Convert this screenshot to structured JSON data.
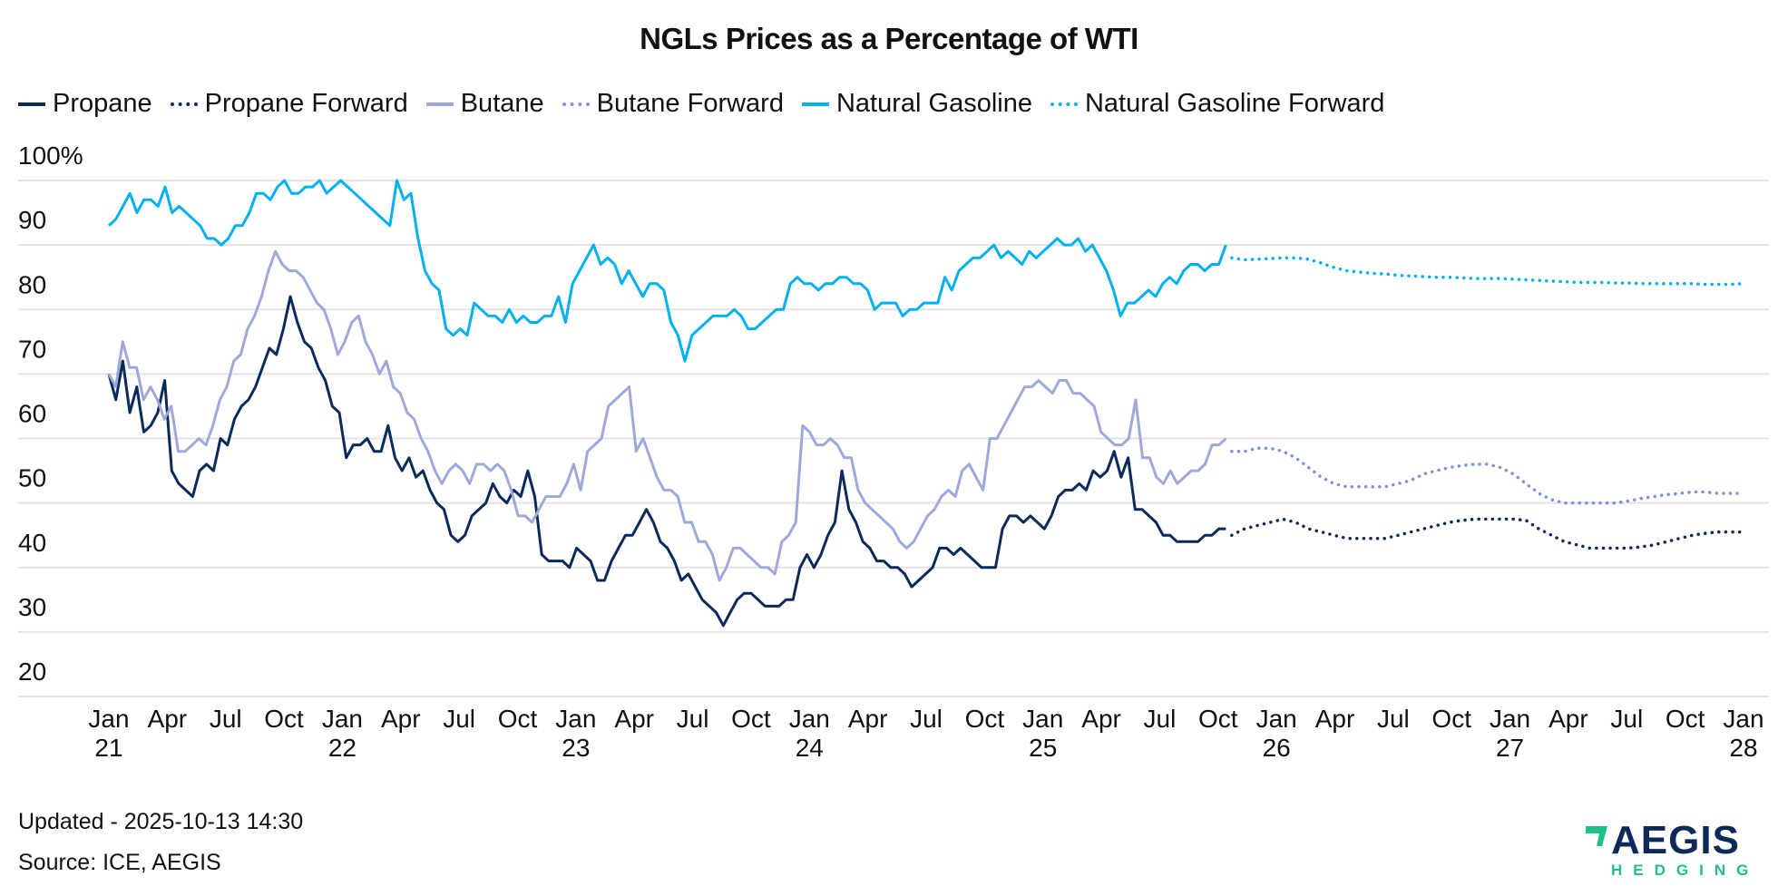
{
  "chart_data": {
    "type": "line",
    "title": "NGLs Prices as a Percentage of WTI",
    "xlabel": "",
    "ylabel": "",
    "ylim": [
      20,
      100
    ],
    "y_ticks": [
      "100%",
      "90",
      "80",
      "70",
      "60",
      "50",
      "40",
      "30",
      "20"
    ],
    "y_tick_values": [
      100,
      90,
      80,
      70,
      60,
      50,
      40,
      30,
      20
    ],
    "x_ticks": [
      {
        "month": "Jan",
        "year": "21"
      },
      {
        "month": "Apr",
        "year": ""
      },
      {
        "month": "Jul",
        "year": ""
      },
      {
        "month": "Oct",
        "year": ""
      },
      {
        "month": "Jan",
        "year": "22"
      },
      {
        "month": "Apr",
        "year": ""
      },
      {
        "month": "Jul",
        "year": ""
      },
      {
        "month": "Oct",
        "year": ""
      },
      {
        "month": "Jan",
        "year": "23"
      },
      {
        "month": "Apr",
        "year": ""
      },
      {
        "month": "Jul",
        "year": ""
      },
      {
        "month": "Oct",
        "year": ""
      },
      {
        "month": "Jan",
        "year": "24"
      },
      {
        "month": "Apr",
        "year": ""
      },
      {
        "month": "Jul",
        "year": ""
      },
      {
        "month": "Oct",
        "year": ""
      },
      {
        "month": "Jan",
        "year": "25"
      },
      {
        "month": "Apr",
        "year": ""
      },
      {
        "month": "Jul",
        "year": ""
      },
      {
        "month": "Oct",
        "year": ""
      },
      {
        "month": "Jan",
        "year": "26"
      },
      {
        "month": "Apr",
        "year": ""
      },
      {
        "month": "Jul",
        "year": ""
      },
      {
        "month": "Oct",
        "year": ""
      },
      {
        "month": "Jan",
        "year": "27"
      },
      {
        "month": "Apr",
        "year": ""
      },
      {
        "month": "Jul",
        "year": ""
      },
      {
        "month": "Oct",
        "year": ""
      },
      {
        "month": "Jan",
        "year": "28"
      }
    ],
    "x_range": [
      "2021-01",
      "2028-01"
    ],
    "grid": "horizontal",
    "legend_position": "top-left",
    "x_historical_start": "2021-01",
    "x_step": "half-month",
    "series": [
      {
        "name": "Propane",
        "style": "solid",
        "color": "#0b2a5a",
        "start": "2021-01",
        "values": [
          70,
          66,
          72,
          64,
          68,
          61,
          62,
          64,
          69,
          55,
          53,
          52,
          51,
          55,
          56,
          55,
          60,
          59,
          63,
          65,
          66,
          68,
          71,
          74,
          73,
          77,
          82,
          78,
          75,
          74,
          71,
          69,
          65,
          64,
          57,
          59,
          59,
          60,
          58,
          58,
          62,
          57,
          55,
          57,
          54,
          55,
          52,
          50,
          49,
          45,
          44,
          45,
          48,
          49,
          50,
          53,
          51,
          50,
          52,
          51,
          55,
          51,
          42,
          41,
          41,
          41,
          40,
          43,
          42,
          41,
          38,
          38,
          41,
          43,
          45,
          45,
          47,
          49,
          47,
          44,
          43,
          41,
          38,
          39,
          37,
          35,
          34,
          33,
          31,
          33,
          35,
          36,
          36,
          35,
          34,
          34,
          34,
          35,
          35,
          40,
          42,
          40,
          42,
          45,
          47,
          55,
          49,
          47,
          44,
          43,
          41,
          41,
          40,
          40,
          39,
          37,
          38,
          39,
          40,
          43,
          43,
          42,
          43,
          42,
          41,
          40,
          40,
          40,
          46,
          48,
          48,
          47,
          48,
          47,
          46,
          48,
          51,
          52,
          52,
          53,
          52,
          55,
          54,
          55,
          58,
          54,
          57,
          49,
          49,
          48,
          47,
          45,
          45,
          44,
          44,
          44,
          44,
          45,
          45,
          46,
          46
        ]
      },
      {
        "name": "Propane Forward",
        "style": "dotted",
        "color": "#0b2a5a",
        "start": "2025-10",
        "values": [
          45,
          46,
          46.5,
          47,
          47.5,
          47,
          46,
          45.5,
          45,
          44.5,
          44.5,
          44.5,
          44.5,
          45,
          45.5,
          46,
          46.5,
          47,
          47.3,
          47.5,
          47.5,
          47.5,
          47.5,
          47.3,
          46,
          45,
          44,
          43.5,
          43,
          43,
          43,
          43,
          43.2,
          43.5,
          44,
          44.5,
          45,
          45.3,
          45.5,
          45.5,
          45.5
        ]
      },
      {
        "name": "Butane",
        "style": "solid",
        "color": "#9fa8da",
        "start": "2021-01",
        "values": [
          70,
          68,
          75,
          71,
          71,
          66,
          68,
          66,
          63,
          65,
          58,
          58,
          59,
          60,
          59,
          62,
          66,
          68,
          72,
          73,
          77,
          79,
          82,
          86,
          89,
          87,
          86,
          86,
          85,
          83,
          81,
          80,
          77,
          73,
          75,
          78,
          79,
          75,
          73,
          70,
          72,
          68,
          67,
          64,
          63,
          60,
          58,
          55,
          53,
          55,
          56,
          55,
          53,
          56,
          56,
          55,
          56,
          55,
          52,
          48,
          48,
          47,
          49,
          51,
          51,
          51,
          53,
          56,
          52,
          58,
          59,
          60,
          65,
          66,
          67,
          68,
          58,
          60,
          57,
          54,
          52,
          52,
          51,
          47,
          47,
          44,
          44,
          42,
          38,
          40,
          43,
          43,
          42,
          41,
          40,
          40,
          39,
          44,
          45,
          47,
          62,
          61,
          59,
          59,
          60,
          59,
          57,
          57,
          52,
          50,
          49,
          48,
          47,
          46,
          44,
          43,
          44,
          46,
          48,
          49,
          51,
          52,
          51,
          55,
          56,
          54,
          52,
          60,
          60,
          62,
          64,
          66,
          68,
          68,
          69,
          68,
          67,
          69,
          69,
          67,
          67,
          66,
          65,
          61,
          60,
          59,
          59,
          60,
          66,
          57,
          57,
          54,
          53,
          55,
          53,
          54,
          55,
          55,
          56,
          59,
          59,
          60
        ]
      },
      {
        "name": "Butane Forward",
        "style": "dotted",
        "color": "#7e93d6",
        "start": "2025-10",
        "values": [
          58,
          58,
          58.5,
          58.5,
          58,
          57,
          55.5,
          54,
          53,
          52.5,
          52.5,
          52.5,
          52.5,
          53,
          53.5,
          54.5,
          55,
          55.5,
          55.8,
          56,
          56,
          55.5,
          54.5,
          53,
          51.5,
          50.5,
          50,
          50,
          50,
          50,
          50,
          50.3,
          50.7,
          51,
          51.3,
          51.5,
          51.7,
          51.7,
          51.5,
          51.5,
          51.5
        ]
      },
      {
        "name": "Natural Gasoline",
        "style": "solid",
        "color": "#00b0f0",
        "start": "2021-01",
        "values": [
          93,
          94,
          96,
          98,
          95,
          97,
          97,
          96,
          99,
          95,
          96,
          95,
          94,
          93,
          91,
          91,
          90,
          91,
          93,
          93,
          95,
          98,
          98,
          97,
          99,
          100,
          98,
          98,
          99,
          99,
          100,
          98,
          99,
          100,
          99,
          98,
          97,
          96,
          95,
          94,
          93,
          100,
          97,
          98,
          91,
          86,
          84,
          83,
          77,
          76,
          77,
          76,
          81,
          80,
          79,
          79,
          78,
          80,
          78,
          79,
          78,
          78,
          79,
          79,
          82,
          78,
          84,
          86,
          88,
          90,
          87,
          88,
          87,
          84,
          86,
          84,
          82,
          84,
          84,
          83,
          78,
          76,
          72,
          76,
          77,
          78,
          79,
          79,
          79,
          80,
          79,
          77,
          77,
          78,
          79,
          80,
          80,
          84,
          85,
          84,
          84,
          83,
          84,
          84,
          85,
          85,
          84,
          84,
          83,
          80,
          81,
          81,
          81,
          79,
          80,
          80,
          81,
          81,
          81,
          85,
          83,
          86,
          87,
          88,
          88,
          89,
          90,
          88,
          89,
          88,
          87,
          89,
          88,
          89,
          90,
          91,
          90,
          90,
          91,
          89,
          90,
          88,
          86,
          83,
          79,
          81,
          81,
          82,
          83,
          82,
          84,
          85,
          84,
          86,
          87,
          87,
          86,
          87,
          87,
          90
        ]
      },
      {
        "name": "Natural Gasoline Forward",
        "style": "dotted",
        "color": "#00b0f0",
        "start": "2025-10",
        "values": [
          88,
          87.7,
          87.8,
          87.9,
          88,
          88,
          87.8,
          87.2,
          86.5,
          86,
          85.8,
          85.6,
          85.5,
          85.3,
          85.2,
          85.1,
          85,
          85,
          84.9,
          84.8,
          84.8,
          84.8,
          84.7,
          84.6,
          84.5,
          84.4,
          84.3,
          84.2,
          84.2,
          84.2,
          84.1,
          84.1,
          84,
          84,
          84,
          84,
          84,
          83.9,
          83.9,
          83.9,
          84
        ]
      }
    ]
  },
  "footer": {
    "updated": "Updated - 2025-10-13 14:30",
    "source": "Source: ICE, AEGIS"
  },
  "logo": {
    "name": "AEGIS",
    "subtitle": "HEDGING",
    "mark_color": "#1ec08a",
    "text_color": "#0b2a5a"
  }
}
